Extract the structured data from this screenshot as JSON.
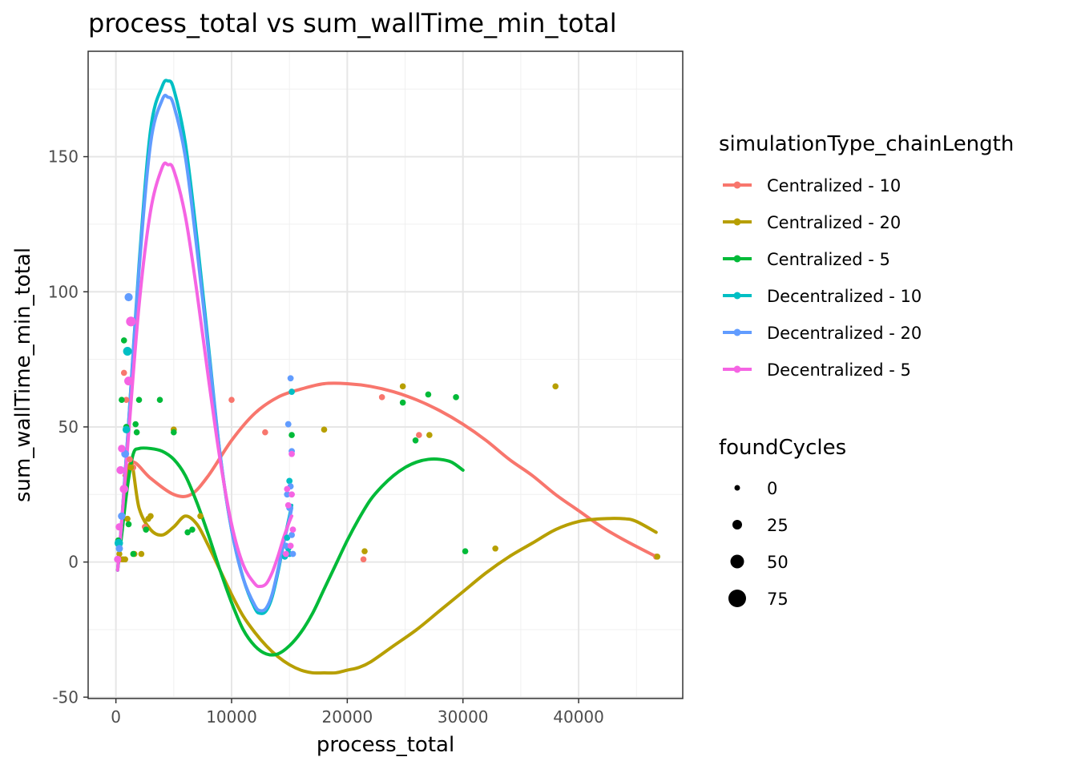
{
  "chart_data": {
    "type": "scatter",
    "title": "process_total  vs  sum_wallTime_min_total",
    "xlabel": "process_total",
    "ylabel": "sum_wallTime_min_total",
    "xlim": [
      -2400,
      49000
    ],
    "ylim": [
      -50.5,
      189
    ],
    "x_ticks": [
      0,
      10000,
      20000,
      30000,
      40000
    ],
    "x_tick_labels": [
      "0",
      "10000",
      "20000",
      "30000",
      "40000"
    ],
    "y_ticks": [
      -50,
      0,
      50,
      100,
      150
    ],
    "y_tick_labels": [
      "-50",
      "0",
      "50",
      "100",
      "150"
    ],
    "grid": true,
    "legend_position": "right",
    "color_legend": {
      "title": "simulationType_chainLength",
      "entries": [
        {
          "label": "Centralized - 10",
          "color": "#F8766D"
        },
        {
          "label": "Centralized - 20",
          "color": "#B79F00"
        },
        {
          "label": "Centralized - 5",
          "color": "#00BA38"
        },
        {
          "label": "Decentralized - 10",
          "color": "#00BFC4"
        },
        {
          "label": "Decentralized - 20",
          "color": "#619CFF"
        },
        {
          "label": "Decentralized - 5",
          "color": "#F564E3"
        }
      ]
    },
    "size_legend": {
      "title": "foundCycles",
      "entries": [
        {
          "label": "0",
          "value": 0
        },
        {
          "label": "25",
          "value": 25
        },
        {
          "label": "50",
          "value": 50
        },
        {
          "label": "75",
          "value": 75
        }
      ]
    },
    "series": [
      {
        "name": "Centralized - 10",
        "color": "#F8766D",
        "points": [
          [
            400,
            1,
            2
          ],
          [
            700,
            70,
            3
          ],
          [
            900,
            60,
            3
          ],
          [
            1200,
            38,
            3
          ],
          [
            1500,
            35,
            3
          ],
          [
            2500,
            13,
            3
          ],
          [
            5000,
            49,
            3
          ],
          [
            10000,
            60,
            3
          ],
          [
            12900,
            48,
            3
          ],
          [
            21400,
            1,
            3
          ],
          [
            23000,
            61,
            3
          ],
          [
            26200,
            47,
            3
          ],
          [
            46700,
            2,
            3
          ]
        ],
        "smooth": [
          [
            700,
            32
          ],
          [
            1500,
            37
          ],
          [
            3000,
            31
          ],
          [
            5000,
            25
          ],
          [
            6500,
            25
          ],
          [
            8000,
            32
          ],
          [
            10000,
            45
          ],
          [
            12000,
            55
          ],
          [
            14000,
            61
          ],
          [
            16000,
            64
          ],
          [
            18000,
            66
          ],
          [
            20000,
            66
          ],
          [
            22000,
            65
          ],
          [
            24000,
            63
          ],
          [
            26000,
            60
          ],
          [
            28000,
            56
          ],
          [
            30000,
            51
          ],
          [
            32000,
            45
          ],
          [
            34000,
            38
          ],
          [
            36000,
            32
          ],
          [
            38000,
            25
          ],
          [
            40000,
            19
          ],
          [
            42000,
            13
          ],
          [
            44000,
            8
          ],
          [
            46700,
            2
          ]
        ]
      },
      {
        "name": "Centralized - 20",
        "color": "#B79F00",
        "points": [
          [
            300,
            3,
            2
          ],
          [
            600,
            1,
            3
          ],
          [
            800,
            1,
            3
          ],
          [
            1000,
            16,
            3
          ],
          [
            1300,
            35,
            3
          ],
          [
            1600,
            3,
            3
          ],
          [
            2200,
            3,
            3
          ],
          [
            2800,
            16,
            3
          ],
          [
            3000,
            17,
            3
          ],
          [
            5000,
            49,
            3
          ],
          [
            7300,
            17,
            3
          ],
          [
            18000,
            49,
            3
          ],
          [
            21500,
            4,
            3
          ],
          [
            24800,
            65,
            3
          ],
          [
            27100,
            47,
            3
          ],
          [
            32800,
            5,
            3
          ],
          [
            38000,
            65,
            3
          ],
          [
            46800,
            2,
            3
          ]
        ],
        "smooth": [
          [
            700,
            20
          ],
          [
            1300,
            37
          ],
          [
            2000,
            20
          ],
          [
            3000,
            12
          ],
          [
            4000,
            10
          ],
          [
            5000,
            13
          ],
          [
            6000,
            17
          ],
          [
            7000,
            14
          ],
          [
            8000,
            6
          ],
          [
            9000,
            -3
          ],
          [
            10000,
            -12
          ],
          [
            11000,
            -20
          ],
          [
            12000,
            -26
          ],
          [
            13000,
            -31
          ],
          [
            14000,
            -35
          ],
          [
            15000,
            -38
          ],
          [
            16000,
            -40
          ],
          [
            17000,
            -41
          ],
          [
            18000,
            -41
          ],
          [
            19000,
            -41
          ],
          [
            20000,
            -40
          ],
          [
            21000,
            -39
          ],
          [
            22000,
            -37
          ],
          [
            24000,
            -31
          ],
          [
            26000,
            -25
          ],
          [
            28000,
            -18
          ],
          [
            30000,
            -11
          ],
          [
            32000,
            -4
          ],
          [
            34000,
            2
          ],
          [
            36000,
            7
          ],
          [
            38000,
            12
          ],
          [
            40000,
            15
          ],
          [
            42000,
            16
          ],
          [
            44000,
            16
          ],
          [
            45000,
            15
          ],
          [
            46700,
            11
          ]
        ]
      },
      {
        "name": "Centralized - 5",
        "color": "#00BA38",
        "points": [
          [
            200,
            8,
            3
          ],
          [
            500,
            60,
            3
          ],
          [
            700,
            82,
            3
          ],
          [
            900,
            50,
            3
          ],
          [
            1100,
            14,
            3
          ],
          [
            1500,
            3,
            3
          ],
          [
            1700,
            51,
            3
          ],
          [
            1800,
            48,
            3
          ],
          [
            2000,
            60,
            3
          ],
          [
            2600,
            12,
            3
          ],
          [
            3800,
            60,
            3
          ],
          [
            5000,
            48,
            3
          ],
          [
            6200,
            11,
            3
          ],
          [
            6600,
            12,
            3
          ],
          [
            15200,
            47,
            3
          ],
          [
            25900,
            45,
            3
          ],
          [
            24800,
            59,
            3
          ],
          [
            27000,
            62,
            3
          ],
          [
            29400,
            61,
            3
          ],
          [
            30200,
            4,
            3
          ]
        ],
        "smooth": [
          [
            150,
            -3
          ],
          [
            500,
            10
          ],
          [
            1000,
            28
          ],
          [
            1500,
            40
          ],
          [
            2000,
            42
          ],
          [
            3000,
            42
          ],
          [
            4000,
            41
          ],
          [
            5000,
            38
          ],
          [
            6000,
            32
          ],
          [
            7000,
            22
          ],
          [
            8000,
            10
          ],
          [
            9000,
            -3
          ],
          [
            10000,
            -15
          ],
          [
            11000,
            -25
          ],
          [
            12000,
            -31
          ],
          [
            13000,
            -34
          ],
          [
            14000,
            -34
          ],
          [
            15000,
            -31
          ],
          [
            16000,
            -26
          ],
          [
            17000,
            -19
          ],
          [
            18000,
            -10
          ],
          [
            19000,
            -1
          ],
          [
            20000,
            8
          ],
          [
            21000,
            16
          ],
          [
            22000,
            23
          ],
          [
            23000,
            28
          ],
          [
            24000,
            32
          ],
          [
            25000,
            35
          ],
          [
            26000,
            37
          ],
          [
            27000,
            38
          ],
          [
            28000,
            38
          ],
          [
            29000,
            37
          ],
          [
            30000,
            34
          ]
        ]
      },
      {
        "name": "Decentralized - 10",
        "color": "#00BFC4",
        "points": [
          [
            250,
            7,
            18
          ],
          [
            900,
            49,
            12
          ],
          [
            1000,
            78,
            20
          ],
          [
            14600,
            2,
            4
          ],
          [
            14800,
            9,
            4
          ],
          [
            15000,
            3,
            4
          ],
          [
            15200,
            63,
            4
          ],
          [
            15000,
            30,
            4
          ],
          [
            14900,
            5,
            4
          ]
        ],
        "smooth": [
          [
            150,
            -3
          ],
          [
            500,
            15
          ],
          [
            1000,
            45
          ],
          [
            2000,
            110
          ],
          [
            3000,
            160
          ],
          [
            4000,
            176
          ],
          [
            4500,
            178
          ],
          [
            5000,
            175
          ],
          [
            6000,
            155
          ],
          [
            7000,
            120
          ],
          [
            8000,
            80
          ],
          [
            9000,
            40
          ],
          [
            10000,
            12
          ],
          [
            11000,
            -6
          ],
          [
            12000,
            -17
          ],
          [
            12500,
            -19
          ],
          [
            13000,
            -18
          ],
          [
            13500,
            -13
          ],
          [
            14000,
            -4
          ],
          [
            14500,
            7
          ],
          [
            15000,
            17
          ],
          [
            15200,
            21
          ]
        ]
      },
      {
        "name": "Decentralized - 20",
        "color": "#619CFF",
        "points": [
          [
            150,
            1,
            8
          ],
          [
            300,
            5,
            10
          ],
          [
            500,
            17,
            12
          ],
          [
            800,
            40,
            14
          ],
          [
            1100,
            98,
            16
          ],
          [
            14700,
            6,
            4
          ],
          [
            14900,
            51,
            4
          ],
          [
            15100,
            68,
            4
          ],
          [
            15200,
            41,
            4
          ],
          [
            15100,
            28,
            4
          ],
          [
            15000,
            20,
            4
          ],
          [
            15300,
            3,
            4
          ],
          [
            14800,
            25,
            4
          ],
          [
            15200,
            10,
            4
          ]
        ],
        "smooth": [
          [
            150,
            -3
          ],
          [
            500,
            15
          ],
          [
            1000,
            45
          ],
          [
            2000,
            108
          ],
          [
            3000,
            155
          ],
          [
            4000,
            171
          ],
          [
            4500,
            172
          ],
          [
            5000,
            169
          ],
          [
            6000,
            150
          ],
          [
            7000,
            116
          ],
          [
            8000,
            78
          ],
          [
            9000,
            40
          ],
          [
            10000,
            12
          ],
          [
            11000,
            -6
          ],
          [
            12000,
            -16
          ],
          [
            12500,
            -18
          ],
          [
            13000,
            -17
          ],
          [
            13500,
            -12
          ],
          [
            14000,
            -3
          ],
          [
            14500,
            7
          ],
          [
            15000,
            16
          ],
          [
            15200,
            20
          ]
        ]
      },
      {
        "name": "Decentralized - 5",
        "color": "#F564E3",
        "points": [
          [
            150,
            1,
            10
          ],
          [
            300,
            13,
            12
          ],
          [
            400,
            34,
            16
          ],
          [
            500,
            42,
            12
          ],
          [
            700,
            27,
            18
          ],
          [
            1100,
            67,
            20
          ],
          [
            1300,
            89,
            26
          ],
          [
            14700,
            3,
            4
          ],
          [
            14800,
            27,
            4
          ],
          [
            14900,
            21,
            4
          ],
          [
            15200,
            25,
            4
          ],
          [
            15300,
            12,
            4
          ],
          [
            15100,
            6,
            4
          ],
          [
            15200,
            40,
            4
          ]
        ],
        "smooth": [
          [
            150,
            -3
          ],
          [
            500,
            15
          ],
          [
            1000,
            42
          ],
          [
            2000,
            95
          ],
          [
            3000,
            130
          ],
          [
            4000,
            146
          ],
          [
            4500,
            147
          ],
          [
            5000,
            145
          ],
          [
            6000,
            128
          ],
          [
            7000,
            100
          ],
          [
            8000,
            68
          ],
          [
            9000,
            38
          ],
          [
            10000,
            14
          ],
          [
            11000,
            -1
          ],
          [
            12000,
            -8
          ],
          [
            12500,
            -9
          ],
          [
            13000,
            -8
          ],
          [
            13500,
            -4
          ],
          [
            14000,
            2
          ],
          [
            14500,
            9
          ],
          [
            15000,
            15
          ],
          [
            15200,
            17
          ]
        ]
      }
    ]
  }
}
